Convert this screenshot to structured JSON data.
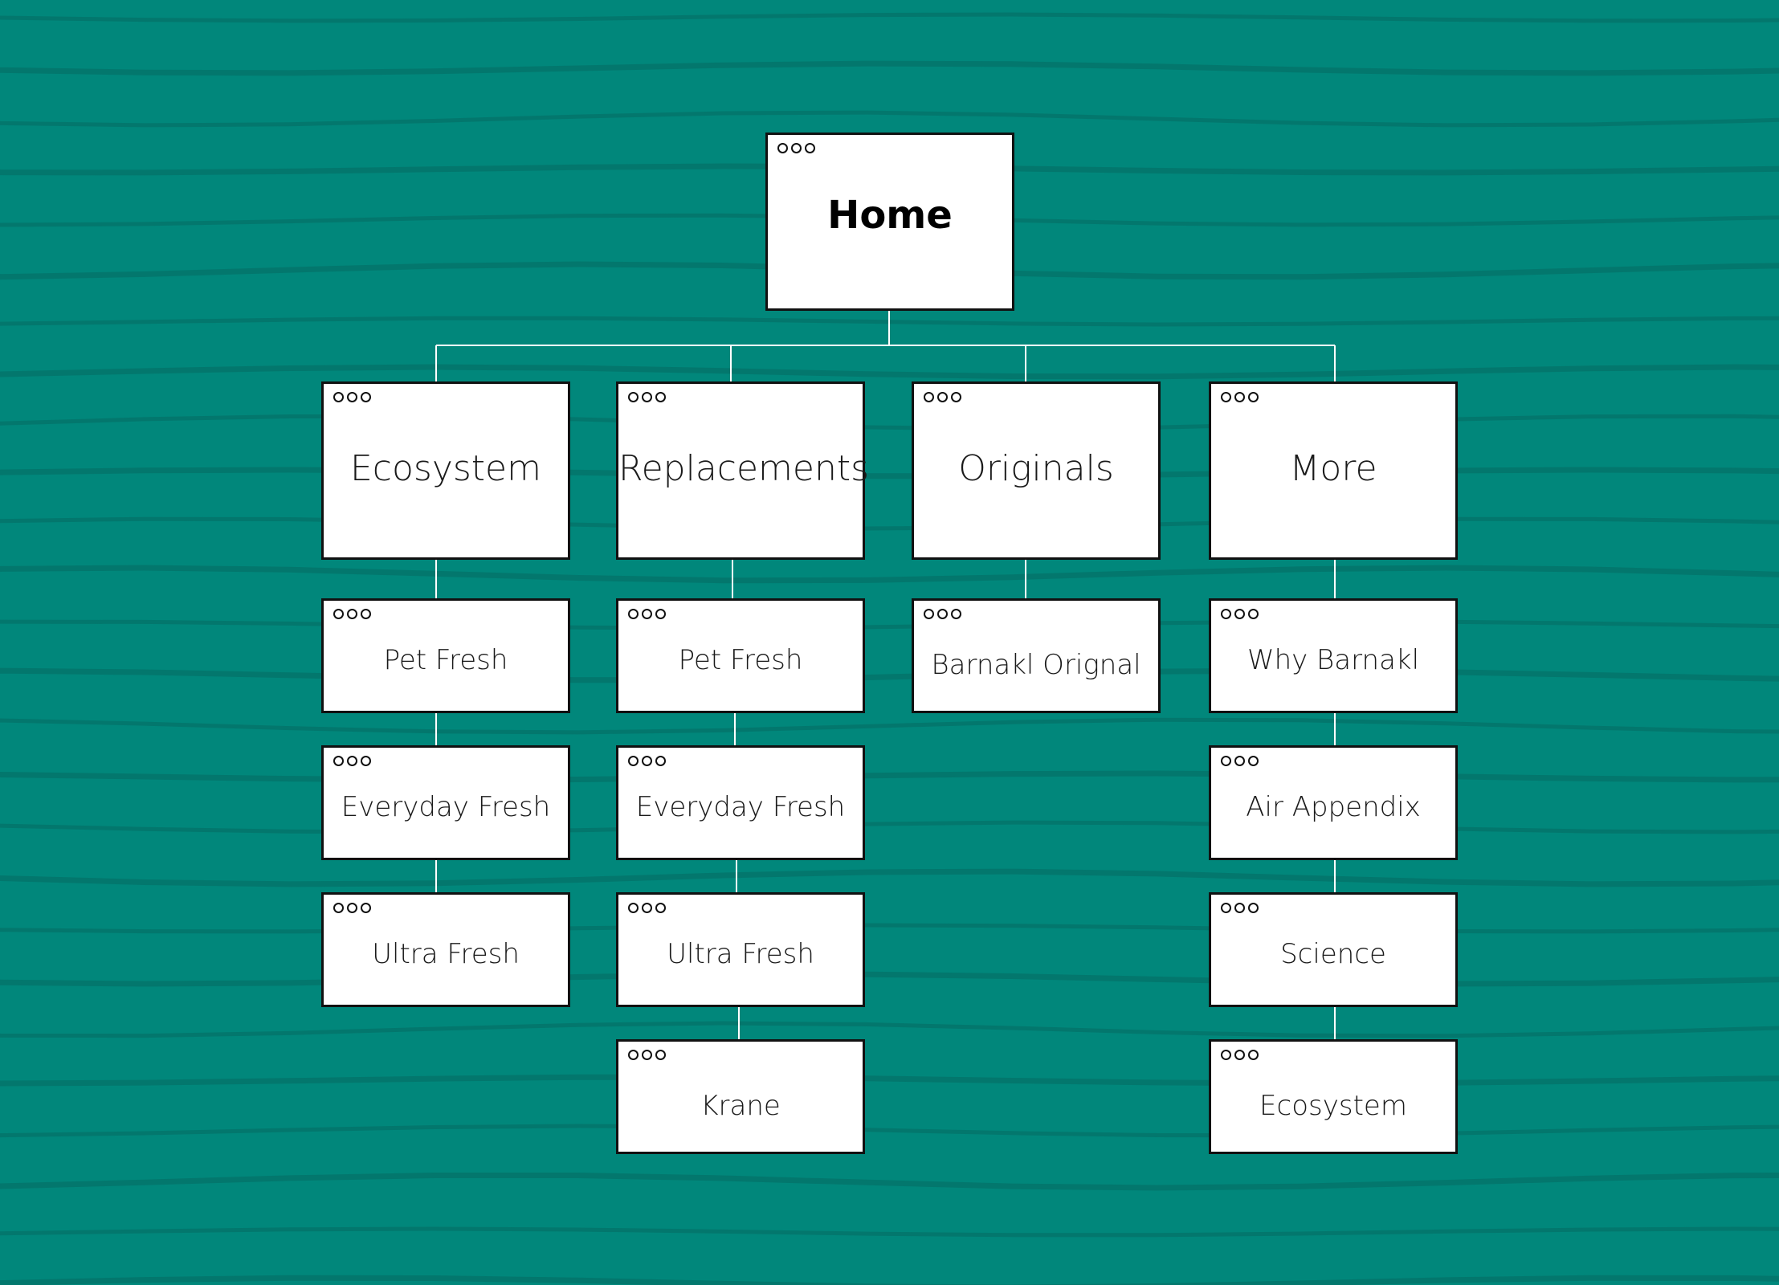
{
  "colors": {
    "background": "#01877b",
    "stripe": "#03776d",
    "connector": "#ffffff",
    "node_fill": "#ffffff",
    "node_border": "#111111"
  },
  "icons": {
    "window_dots": "three-circle-window-dots"
  },
  "sitemap": {
    "root": {
      "label": "Home"
    },
    "sections": [
      {
        "label": "Ecosystem",
        "children": [
          "Pet Fresh",
          "Everyday Fresh",
          "Ultra Fresh"
        ]
      },
      {
        "label": "Replacements",
        "children": [
          "Pet Fresh",
          "Everyday Fresh",
          "Ultra Fresh",
          "Krane"
        ]
      },
      {
        "label": "Originals",
        "children": [
          "Barnakl Orignal"
        ]
      },
      {
        "label": "More",
        "children": [
          "Why Barnakl",
          "Air Appendix",
          "Science",
          "Ecosystem"
        ]
      }
    ]
  }
}
